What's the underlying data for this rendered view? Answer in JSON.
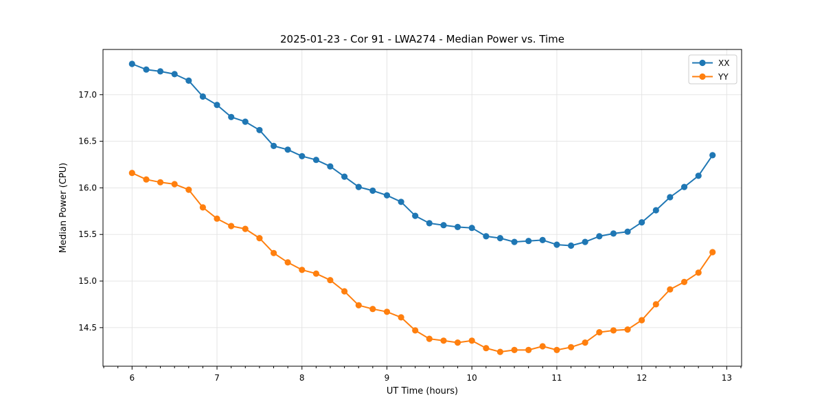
{
  "chart_data": {
    "type": "line",
    "title": "2025-01-23 - Cor 91 - LWA274 - Median Power vs. Time",
    "xlabel": "UT Time (hours)",
    "ylabel": "Median Power (CPU)",
    "x": [
      6.0,
      6.167,
      6.333,
      6.5,
      6.667,
      6.833,
      7.0,
      7.167,
      7.333,
      7.5,
      7.667,
      7.833,
      8.0,
      8.167,
      8.333,
      8.5,
      8.667,
      8.833,
      9.0,
      9.167,
      9.333,
      9.5,
      9.667,
      9.833,
      10.0,
      10.167,
      10.333,
      10.5,
      10.667,
      10.833,
      11.0,
      11.167,
      11.333,
      11.5,
      11.667,
      11.833,
      12.0,
      12.167,
      12.333,
      12.5,
      12.667,
      12.833
    ],
    "series": [
      {
        "name": "XX",
        "color": "#1f77b4",
        "values": [
          17.33,
          17.27,
          17.25,
          17.22,
          17.15,
          16.98,
          16.89,
          16.76,
          16.71,
          16.62,
          16.45,
          16.41,
          16.34,
          16.3,
          16.23,
          16.12,
          16.01,
          15.97,
          15.92,
          15.85,
          15.7,
          15.62,
          15.6,
          15.58,
          15.57,
          15.48,
          15.46,
          15.42,
          15.43,
          15.44,
          15.39,
          15.38,
          15.42,
          15.48,
          15.51,
          15.53,
          15.63,
          15.76,
          15.9,
          16.01,
          16.13,
          16.35
        ]
      },
      {
        "name": "YY",
        "color": "#ff7f0e",
        "values": [
          16.16,
          16.09,
          16.06,
          16.04,
          15.98,
          15.79,
          15.67,
          15.59,
          15.56,
          15.46,
          15.3,
          15.2,
          15.12,
          15.08,
          15.01,
          14.89,
          14.74,
          14.7,
          14.67,
          14.61,
          14.47,
          14.38,
          14.36,
          14.34,
          14.36,
          14.28,
          14.24,
          14.26,
          14.26,
          14.3,
          14.26,
          14.29,
          14.34,
          14.45,
          14.47,
          14.48,
          14.58,
          14.75,
          14.91,
          14.99,
          15.09,
          15.31
        ]
      }
    ],
    "xticks": [
      6,
      7,
      8,
      9,
      10,
      11,
      12,
      13
    ],
    "yticks": [
      14.5,
      15.0,
      15.5,
      16.0,
      16.5,
      17.0
    ],
    "xlim": [
      5.658,
      13.175
    ],
    "ylim": [
      14.086,
      17.485
    ],
    "x_minor_step": 0.166667,
    "grid": true,
    "legend_position": "upper right",
    "colors": {
      "grid": "#e2e2e2",
      "spine": "#000000",
      "tick": "#000000",
      "legend_border": "#cccccc",
      "legend_background": "#ffffff"
    },
    "style": {
      "line_width": 2,
      "marker_radius": 4.6
    }
  }
}
